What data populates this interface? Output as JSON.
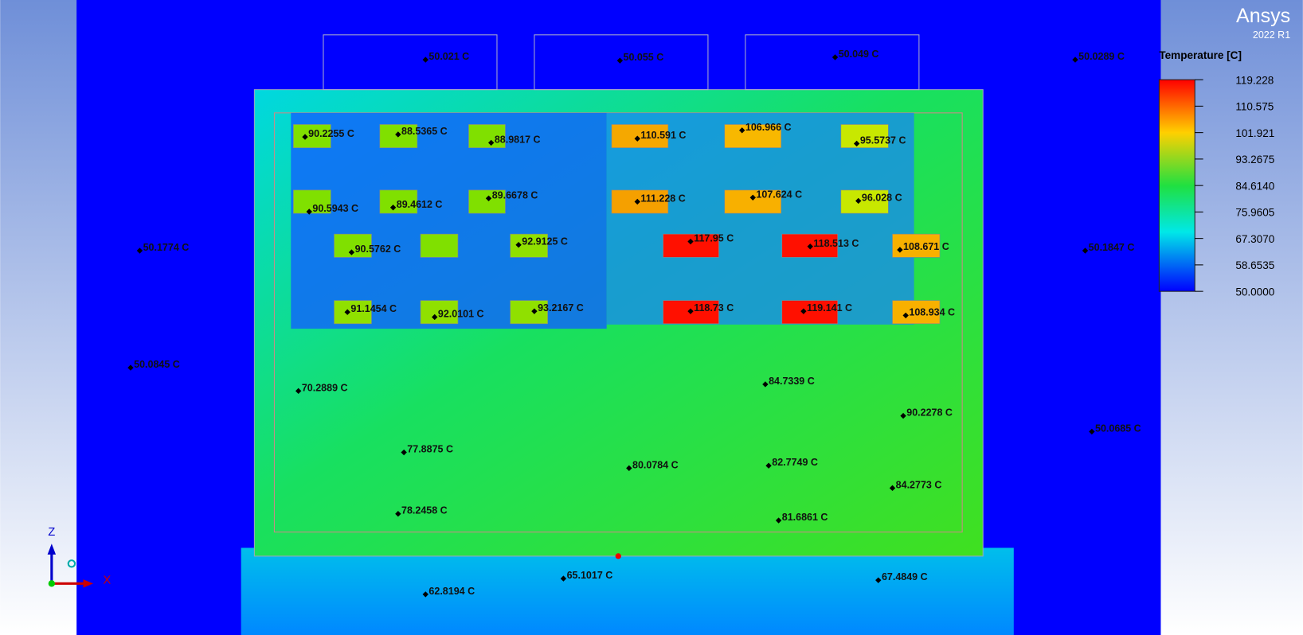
{
  "brand": {
    "name": "Ansys",
    "version": "2022 R1"
  },
  "legend": {
    "title": "Temperature [C]",
    "labels": [
      "119.228",
      "110.575",
      "101.921",
      "93.2675",
      "84.6140",
      "75.9605",
      "67.3070",
      "58.6535",
      "50.0000"
    ]
  },
  "axes": {
    "z": "Z",
    "x": "X"
  },
  "probes": [
    "50.021 C",
    "50.055 C",
    "50.049 C",
    "50.0289 C",
    "90.2255 C",
    "88.5365 C",
    "88.9817 C",
    "110.591 C",
    "106.966 C",
    "95.5737 C",
    "90.5943 C",
    "89.4612 C",
    "89.6678 C",
    "111.228 C",
    "107.624 C",
    "96.028 C",
    "50.1774 C",
    "90.5762 C",
    "92.9125 C",
    "117.95 C",
    "118.513 C",
    "108.671 C",
    "50.1847 C",
    "91.1454 C",
    "92.0101 C",
    "93.2167 C",
    "118.73 C",
    "119.141 C",
    "108.934 C",
    "50.0845 C",
    "70.2889 C",
    "84.7339 C",
    "90.2278 C",
    "50.0685 C",
    "77.8875 C",
    "80.0784 C",
    "82.7749 C",
    "84.2773 C",
    "78.2458 C",
    "81.6861 C",
    "65.1017 C",
    "67.4849 C",
    "62.8194 C"
  ]
}
